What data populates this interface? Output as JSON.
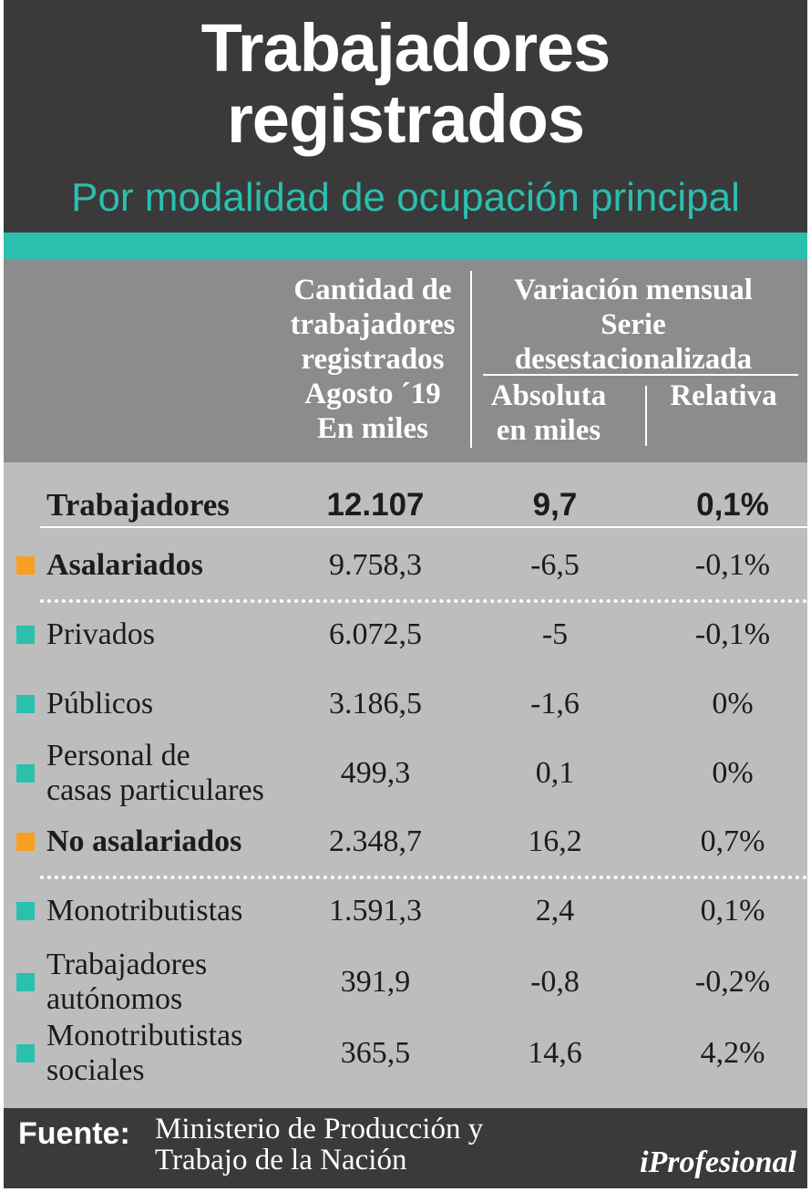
{
  "header": {
    "title_line1": "Trabajadores",
    "title_line2": "registrados",
    "subtitle": "Por modalidad de ocupación principal"
  },
  "colors": {
    "header_bg": "#3a3a3a",
    "accent_teal": "#2bbfae",
    "accent_orange": "#f7a01e",
    "column_header_bg": "#8b8c8e",
    "table_bg": "#bdbdbd"
  },
  "chart_data": {
    "type": "table",
    "title": "Trabajadores registrados",
    "subtitle": "Por modalidad de ocupación principal",
    "columns": {
      "cantidad": [
        "Cantidad de",
        "trabajadores",
        "registrados",
        "Agosto ´19",
        "En miles"
      ],
      "variacion": [
        "Variación mensual",
        "Serie",
        "desestacionalizada"
      ],
      "absoluta": [
        "Absoluta",
        "en miles"
      ],
      "relativa": [
        "Relativa"
      ]
    },
    "total": {
      "label": "Trabajadores",
      "cantidad": "12.107",
      "absoluta": "9,7",
      "relativa": "0,1%"
    },
    "rows": [
      {
        "label": [
          "Asalariados"
        ],
        "cantidad": "9.758,3",
        "absoluta": "-6,5",
        "relativa": "-0,1%",
        "level": "category",
        "marker": "orange"
      },
      {
        "label": [
          "Privados"
        ],
        "cantidad": "6.072,5",
        "absoluta": "-5",
        "relativa": "-0,1%",
        "level": "sub",
        "marker": "teal"
      },
      {
        "label": [
          "Públicos"
        ],
        "cantidad": "3.186,5",
        "absoluta": "-1,6",
        "relativa": "0%",
        "level": "sub",
        "marker": "teal"
      },
      {
        "label": [
          "Personal de",
          "casas particulares"
        ],
        "cantidad": "499,3",
        "absoluta": "0,1",
        "relativa": "0%",
        "level": "sub",
        "marker": "teal"
      },
      {
        "label": [
          "No asalariados"
        ],
        "cantidad": "2.348,7",
        "absoluta": "16,2",
        "relativa": "0,7%",
        "level": "category",
        "marker": "orange"
      },
      {
        "label": [
          "Monotributistas"
        ],
        "cantidad": "1.591,3",
        "absoluta": "2,4",
        "relativa": "0,1%",
        "level": "sub",
        "marker": "teal"
      },
      {
        "label": [
          "Trabajadores",
          "autónomos"
        ],
        "cantidad": "391,9",
        "absoluta": "-0,8",
        "relativa": "-0,2%",
        "level": "sub",
        "marker": "teal"
      },
      {
        "label": [
          "Monotributistas",
          "sociales"
        ],
        "cantidad": "365,5",
        "absoluta": "14,6",
        "relativa": "4,2%",
        "level": "sub",
        "marker": "teal"
      }
    ]
  },
  "footer": {
    "fuente_label": "Fuente:",
    "fuente_line1": "Ministerio de Producción y",
    "fuente_line2": "Trabajo de la Nación",
    "brand": "iProfesional"
  }
}
